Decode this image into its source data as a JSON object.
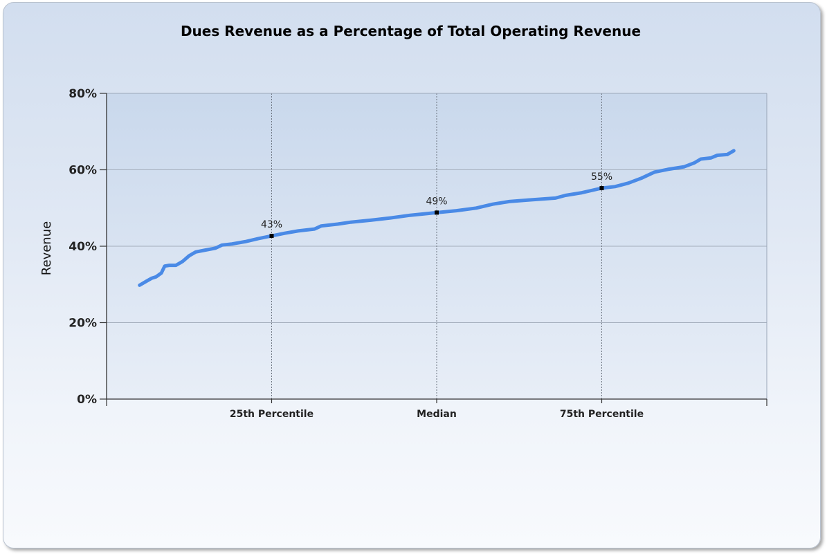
{
  "chart_data": {
    "type": "line",
    "title": "Dues Revenue as a Percentage of Total Operating Revenue",
    "xlabel": "",
    "ylabel": "Revenue",
    "ylim": [
      0,
      80
    ],
    "xlim": [
      0,
      100
    ],
    "y_ticks": [
      "0%",
      "20%",
      "40%",
      "60%",
      "80%"
    ],
    "y_tick_values": [
      0,
      20,
      40,
      60,
      80
    ],
    "x_ticks": [
      {
        "label": "25th Percentile",
        "value": 25
      },
      {
        "label": "Median",
        "value": 50
      },
      {
        "label": "75th Percentile",
        "value": 75
      }
    ],
    "grid": true,
    "series": [
      {
        "color": "#4a8ae6",
        "points": [
          [
            5,
            29.8
          ],
          [
            6,
            30.8
          ],
          [
            6.8,
            31.6
          ],
          [
            7.5,
            32.0
          ],
          [
            8.3,
            33.0
          ],
          [
            8.8,
            34.8
          ],
          [
            9.5,
            35.0
          ],
          [
            10.5,
            35.0
          ],
          [
            11.5,
            36.0
          ],
          [
            12.5,
            37.5
          ],
          [
            13.5,
            38.5
          ],
          [
            15,
            39.0
          ],
          [
            16.5,
            39.5
          ],
          [
            17.5,
            40.3
          ],
          [
            19,
            40.6
          ],
          [
            21,
            41.2
          ],
          [
            23,
            42.0
          ],
          [
            25,
            42.7
          ],
          [
            27,
            43.4
          ],
          [
            29,
            44.0
          ],
          [
            31.5,
            44.5
          ],
          [
            32.5,
            45.3
          ],
          [
            35,
            45.8
          ],
          [
            37,
            46.3
          ],
          [
            40,
            46.8
          ],
          [
            43,
            47.4
          ],
          [
            46,
            48.1
          ],
          [
            50,
            48.8
          ],
          [
            53,
            49.3
          ],
          [
            56,
            50.0
          ],
          [
            58.5,
            51.0
          ],
          [
            61,
            51.7
          ],
          [
            64,
            52.1
          ],
          [
            68,
            52.6
          ],
          [
            69.5,
            53.3
          ],
          [
            72,
            54.0
          ],
          [
            75,
            55.2
          ],
          [
            77,
            55.6
          ],
          [
            79,
            56.5
          ],
          [
            81,
            57.8
          ],
          [
            83,
            59.4
          ],
          [
            85,
            60.1
          ],
          [
            87.5,
            60.8
          ],
          [
            89,
            61.8
          ],
          [
            90,
            62.8
          ],
          [
            91.5,
            63.1
          ],
          [
            92.5,
            63.8
          ],
          [
            94,
            64.0
          ],
          [
            95,
            65.0
          ]
        ]
      }
    ],
    "markers": [
      {
        "x": 25,
        "y": 42.7,
        "label": "43%"
      },
      {
        "x": 50,
        "y": 48.8,
        "label": "49%"
      },
      {
        "x": 75,
        "y": 55.2,
        "label": "55%"
      }
    ]
  }
}
